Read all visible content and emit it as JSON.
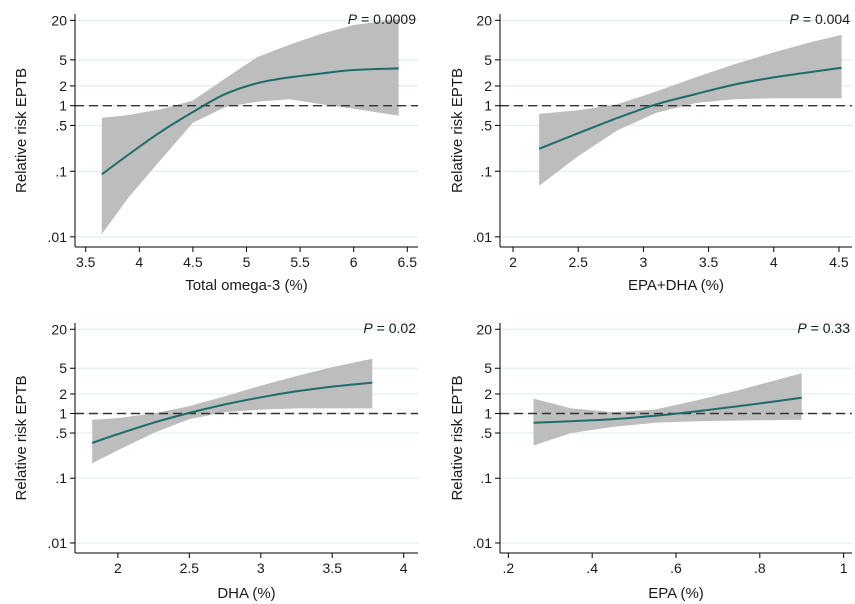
{
  "colors": {
    "curve": "#1e6b6b",
    "band": "#bdbdbd",
    "grid": "#dfe8e8",
    "reference_line": "#333333"
  },
  "chart_data": [
    {
      "type": "line",
      "panel": "top-left",
      "xlabel": "Total omega-3 (%)",
      "ylabel": "Relative risk EPTB",
      "p_prefix": "P",
      "p_value": "= 0.0009",
      "xlim": [
        3.4,
        6.6
      ],
      "ylim": [
        0.007,
        25
      ],
      "y_scale": "log",
      "x_ticks": [
        3.5,
        4,
        4.5,
        5,
        5.5,
        6,
        6.5
      ],
      "x_tick_labels": [
        "3.5",
        "4",
        "4.5",
        "5",
        "5.5",
        "6",
        "6.5"
      ],
      "y_ticks": [
        0.01,
        0.1,
        0.5,
        1,
        2,
        5,
        20
      ],
      "y_tick_labels": [
        ".01",
        ".1",
        ".5",
        "1",
        "2",
        "5",
        "20"
      ],
      "reference_y": 1,
      "grid": true,
      "x": [
        3.65,
        3.9,
        4.2,
        4.5,
        4.8,
        5.1,
        5.4,
        5.7,
        6.0,
        6.42
      ],
      "estimate": [
        0.09,
        0.18,
        0.4,
        0.8,
        1.5,
        2.2,
        2.7,
        3.1,
        3.5,
        3.7
      ],
      "ci_lower": [
        0.011,
        0.04,
        0.15,
        0.55,
        0.95,
        1.15,
        1.25,
        1.05,
        0.9,
        0.7
      ],
      "ci_upper": [
        0.65,
        0.72,
        0.88,
        1.2,
        2.6,
        5.5,
        8.5,
        12.5,
        17,
        21
      ]
    },
    {
      "type": "line",
      "panel": "top-right",
      "xlabel": "EPA+DHA  (%)",
      "ylabel": "Relative risk EPTB",
      "p_prefix": "P",
      "p_value": "= 0.004",
      "xlim": [
        1.9,
        4.6
      ],
      "ylim": [
        0.007,
        25
      ],
      "y_scale": "log",
      "x_ticks": [
        2,
        2.5,
        3,
        3.5,
        4,
        4.5
      ],
      "x_tick_labels": [
        "2",
        "2.5",
        "3",
        "3.5",
        "4",
        "4.5"
      ],
      "y_ticks": [
        0.01,
        0.1,
        0.5,
        1,
        2,
        5,
        20
      ],
      "y_tick_labels": [
        ".01",
        ".1",
        ".5",
        "1",
        "2",
        "5",
        "20"
      ],
      "reference_y": 1,
      "grid": true,
      "x": [
        2.2,
        2.5,
        2.8,
        3.1,
        3.4,
        3.7,
        4.0,
        4.3,
        4.52
      ],
      "estimate": [
        0.22,
        0.38,
        0.65,
        1.05,
        1.5,
        2.1,
        2.7,
        3.3,
        3.8
      ],
      "ci_lower": [
        0.06,
        0.17,
        0.42,
        0.78,
        1.1,
        1.25,
        1.3,
        1.3,
        1.3
      ],
      "ci_upper": [
        0.75,
        0.85,
        1.05,
        1.65,
        2.7,
        4.3,
        6.5,
        9.5,
        12
      ]
    },
    {
      "type": "line",
      "panel": "bottom-left",
      "xlabel": "DHA  (%)",
      "ylabel": "Relative risk EPTB",
      "p_prefix": "P",
      "p_value": "= 0.02",
      "xlim": [
        1.7,
        4.1
      ],
      "ylim": [
        0.007,
        25
      ],
      "y_scale": "log",
      "x_ticks": [
        2,
        2.5,
        3,
        3.5,
        4
      ],
      "x_tick_labels": [
        "2",
        "2.5",
        "3",
        "3.5",
        "4"
      ],
      "y_ticks": [
        0.01,
        0.1,
        0.5,
        1,
        2,
        5,
        20
      ],
      "y_tick_labels": [
        ".01",
        ".1",
        ".5",
        "1",
        "2",
        "5",
        "20"
      ],
      "reference_y": 1,
      "grid": true,
      "x": [
        1.82,
        2.0,
        2.25,
        2.5,
        2.75,
        3.0,
        3.25,
        3.5,
        3.78
      ],
      "estimate": [
        0.35,
        0.48,
        0.72,
        1.02,
        1.38,
        1.78,
        2.2,
        2.6,
        3.0
      ],
      "ci_lower": [
        0.17,
        0.27,
        0.5,
        0.82,
        1.05,
        1.15,
        1.2,
        1.2,
        1.2
      ],
      "ci_upper": [
        0.8,
        0.85,
        1.0,
        1.3,
        1.85,
        2.7,
        3.8,
        5.2,
        7.0
      ]
    },
    {
      "type": "line",
      "panel": "bottom-right",
      "xlabel": "EPA  (%)",
      "ylabel": "Relative risk EPTB",
      "p_prefix": "P",
      "p_value": "= 0.33",
      "xlim": [
        0.18,
        1.02
      ],
      "ylim": [
        0.007,
        25
      ],
      "y_scale": "log",
      "x_ticks": [
        0.2,
        0.4,
        0.6,
        0.8,
        1
      ],
      "x_tick_labels": [
        ".2",
        ".4",
        ".6",
        ".8",
        "1"
      ],
      "y_ticks": [
        0.01,
        0.1,
        0.5,
        1,
        2,
        5,
        20
      ],
      "y_tick_labels": [
        ".01",
        ".1",
        ".5",
        "1",
        "2",
        "5",
        "20"
      ],
      "reference_y": 1,
      "grid": true,
      "x": [
        0.26,
        0.35,
        0.45,
        0.55,
        0.65,
        0.75,
        0.9
      ],
      "estimate": [
        0.72,
        0.76,
        0.82,
        0.92,
        1.08,
        1.3,
        1.75
      ],
      "ci_lower": [
        0.32,
        0.5,
        0.62,
        0.72,
        0.76,
        0.78,
        0.8
      ],
      "ci_upper": [
        1.7,
        1.2,
        1.05,
        1.15,
        1.6,
        2.3,
        4.2
      ]
    }
  ]
}
